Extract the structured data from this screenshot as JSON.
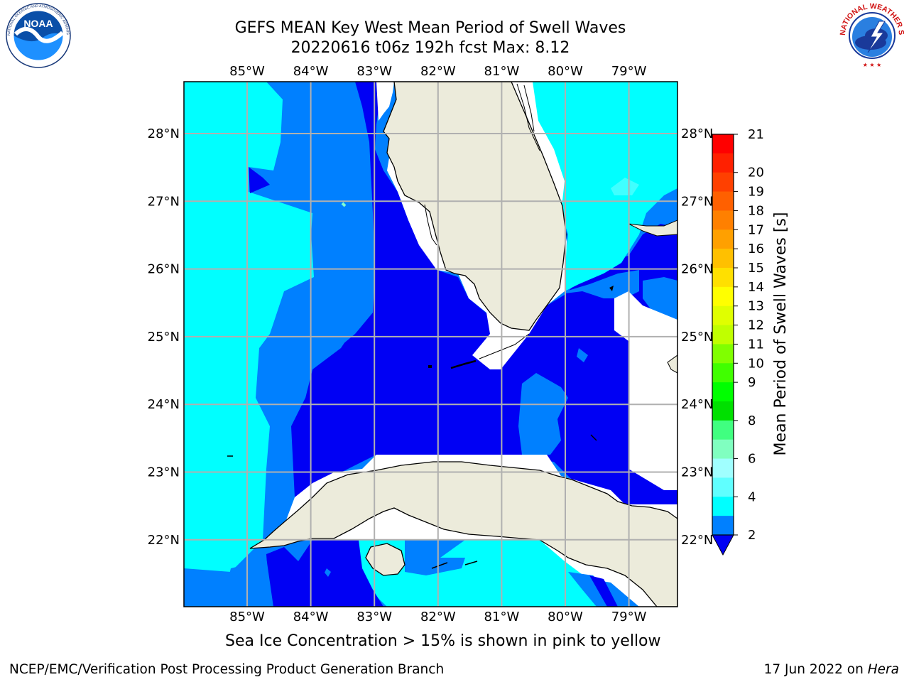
{
  "title": {
    "line1": "GEFS MEAN Key West Mean Period of Swell Waves",
    "line2": "20220616 t06z 192h fcst   Max: 8.12"
  },
  "logos": {
    "noaa": {
      "text": "NOAA",
      "ring_text": "NATIONAL OCEANIC AND ATMOSPHERIC ADMINISTRATION · U.S. DEPARTMENT OF COMMERCE"
    },
    "nws": {
      "ring_text": "NATIONAL WEATHER SERVICE"
    }
  },
  "map": {
    "lon_labels": [
      "85°W",
      "84°W",
      "83°W",
      "82°W",
      "81°W",
      "80°W",
      "79°W"
    ],
    "lat_labels": [
      "28°N",
      "27°N",
      "26°N",
      "25°N",
      "24°N",
      "23°N",
      "22°N"
    ],
    "colors": {
      "land": "#ecebdb",
      "no_data": "#ffffff",
      "period_2_4": "#0000f4",
      "period_4_6": "#0080ff",
      "period_6_8": "#00ffff",
      "period_8_9": "#40ffff",
      "grid": "#b0b0b0"
    }
  },
  "colorbar": {
    "label": "Mean Period of Swell Waves [s]",
    "ticks": [
      "21",
      "20",
      "19",
      "18",
      "17",
      "16",
      "15",
      "14",
      "13",
      "12",
      "11",
      "10",
      "9",
      "8",
      "6",
      "4",
      "2"
    ],
    "colors": [
      "#ff0000",
      "#ff2000",
      "#ff4000",
      "#ff6000",
      "#ff8000",
      "#ffa000",
      "#ffc000",
      "#ffe000",
      "#ffff00",
      "#e0ff00",
      "#c0ff00",
      "#80ff00",
      "#40ff00",
      "#00ff00",
      "#00e000",
      "#40ff80",
      "#80ffc0",
      "#a0ffff",
      "#60ffff",
      "#00ffff",
      "#0080ff"
    ],
    "extend_color": "#0000f4"
  },
  "caption": "Sea Ice Concentration > 15% is shown in pink to yellow",
  "footer": {
    "left": "NCEP/EMC/Verification Post Processing Product Generation Branch",
    "date": "17 Jun 2022 on ",
    "host": "Hera"
  }
}
